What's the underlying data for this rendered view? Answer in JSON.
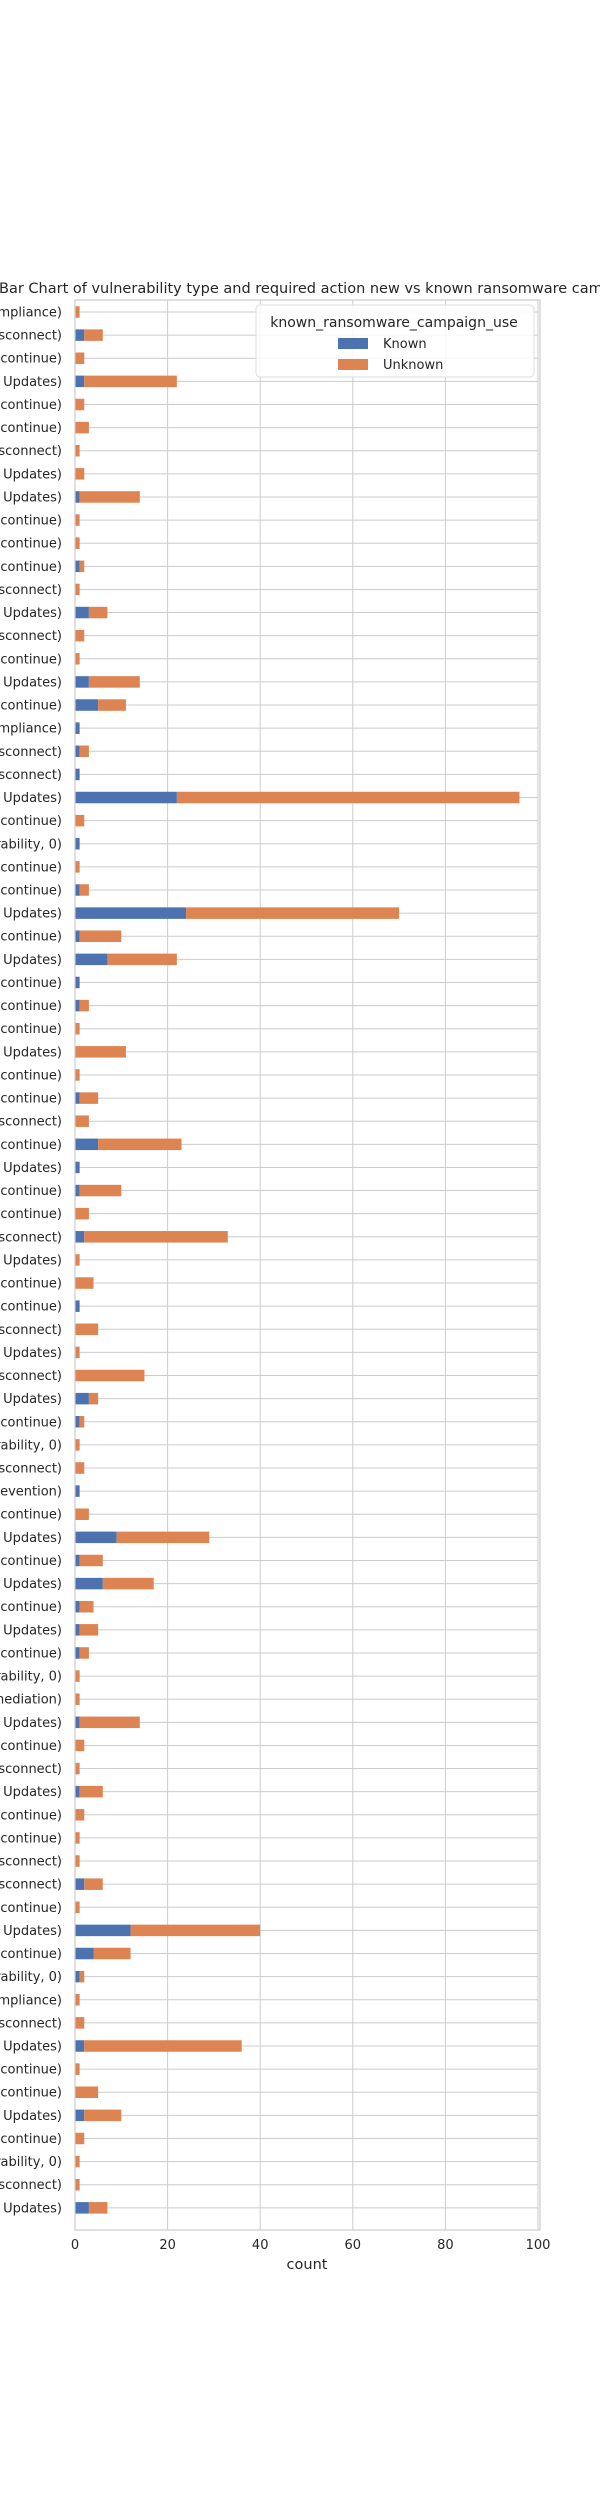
{
  "chart_data": {
    "type": "bar",
    "orientation": "horizontal",
    "stacked": true,
    "title": "Bar Chart of  vulnerability type and required action new vs known ransomware campaign use",
    "xlabel": "count",
    "ylabel": "",
    "xlim": [
      0,
      100
    ],
    "xticks": [
      0,
      20,
      40,
      60,
      80,
      100
    ],
    "grid": true,
    "legend": {
      "title": "known_ransomware_campaign_use",
      "placement": "top-right"
    },
    "categories": [
      "mpliance)",
      "sconnect)",
      "continue)",
      "Updates)",
      "continue)",
      "continue)",
      "sconnect)",
      "Updates)",
      "Updates)",
      "continue)",
      "continue)",
      "continue)",
      "sconnect)",
      "Updates)",
      "sconnect)",
      "continue)",
      "Updates)",
      "continue)",
      "mpliance)",
      "sconnect)",
      "sconnect)",
      "Updates)",
      "continue)",
      "rability, 0)",
      "continue)",
      "continue)",
      "Updates)",
      "continue)",
      "Updates)",
      "continue)",
      "continue)",
      "continue)",
      "Updates)",
      "continue)",
      "continue)",
      "sconnect)",
      "continue)",
      "Updates)",
      "continue)",
      "continue)",
      "sconnect)",
      "Updates)",
      "continue)",
      "continue)",
      "sconnect)",
      "Updates)",
      "sconnect)",
      "Updates)",
      "continue)",
      "rability, 0)",
      "sconnect)",
      "evention)",
      "continue)",
      "Updates)",
      "continue)",
      "Updates)",
      "continue)",
      "Updates)",
      "continue)",
      "rability, 0)",
      "nediation)",
      "Updates)",
      "continue)",
      "sconnect)",
      "Updates)",
      "continue)",
      "continue)",
      "sconnect)",
      "sconnect)",
      "continue)",
      "Updates)",
      "continue)",
      "rability, 0)",
      "mpliance)",
      "sconnect)",
      "Updates)",
      "continue)",
      "continue)",
      "Updates)",
      "continue)",
      "rability, 0)",
      "sconnect)",
      "Updates)"
    ],
    "series": [
      {
        "name": "Known",
        "color": "#4c72b0",
        "values": [
          0,
          2,
          0,
          2,
          0,
          0,
          0,
          0,
          1,
          0,
          0,
          1,
          0,
          3,
          0,
          0,
          3,
          5,
          1,
          1,
          1,
          22,
          0,
          1,
          0,
          1,
          24,
          1,
          7,
          1,
          1,
          0,
          0,
          0,
          1,
          0,
          5,
          1,
          1,
          0,
          2,
          0,
          0,
          1,
          0,
          0,
          0,
          3,
          1,
          0,
          0,
          1,
          0,
          9,
          1,
          6,
          1,
          1,
          1,
          0,
          0,
          1,
          0,
          0,
          1,
          0,
          0,
          0,
          2,
          0,
          12,
          4,
          1,
          0,
          0,
          2,
          0,
          0,
          2,
          0,
          0,
          0,
          3
        ]
      },
      {
        "name": "Unknown",
        "color": "#dd8452",
        "values": [
          1,
          4,
          2,
          20,
          2,
          3,
          1,
          2,
          13,
          1,
          1,
          1,
          1,
          4,
          2,
          1,
          11,
          6,
          0,
          2,
          0,
          74,
          2,
          0,
          1,
          2,
          46,
          9,
          15,
          0,
          2,
          1,
          11,
          1,
          4,
          3,
          18,
          0,
          9,
          3,
          31,
          1,
          4,
          0,
          5,
          1,
          15,
          2,
          1,
          1,
          2,
          0,
          3,
          20,
          5,
          11,
          3,
          4,
          2,
          1,
          1,
          13,
          2,
          1,
          5,
          2,
          1,
          1,
          4,
          1,
          28,
          8,
          1,
          1,
          2,
          34,
          1,
          5,
          8,
          2,
          1,
          1,
          4
        ]
      }
    ]
  }
}
